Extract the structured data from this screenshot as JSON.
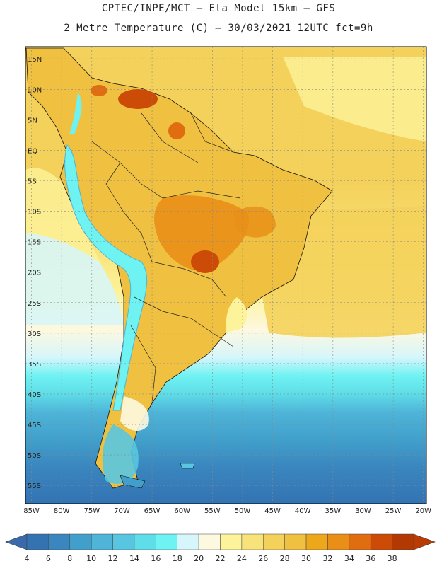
{
  "header": {
    "line1": "CPTEC/INPE/MCT –  Eta Model 15km – GFS",
    "line2": "2 Metre Temperature (C) – 30/03/2021 12UTC fct=9h"
  },
  "map": {
    "region": "South America",
    "lat_labels": [
      "15N",
      "10N",
      "5N",
      "EQ",
      "5S",
      "10S",
      "15S",
      "20S",
      "25S",
      "30S",
      "35S",
      "40S",
      "45S",
      "50S",
      "55S"
    ],
    "lat_values": [
      15,
      10,
      5,
      0,
      -5,
      -10,
      -15,
      -20,
      -25,
      -30,
      -35,
      -40,
      -45,
      -50,
      -55
    ],
    "lon_labels": [
      "85W",
      "80W",
      "75W",
      "70W",
      "65W",
      "60W",
      "55W",
      "50W",
      "45W",
      "40W",
      "35W",
      "30W",
      "25W",
      "20W"
    ],
    "lon_values": [
      -85,
      -80,
      -75,
      -70,
      -65,
      -60,
      -55,
      -50,
      -45,
      -40,
      -35,
      -30,
      -25,
      -20
    ],
    "lon_range": [
      -86,
      -19.5
    ],
    "lat_range": [
      -58,
      17
    ]
  },
  "colorbar": {
    "labels": [
      "4",
      "6",
      "8",
      "10",
      "12",
      "14",
      "16",
      "18",
      "20",
      "22",
      "24",
      "26",
      "28",
      "30",
      "32",
      "34",
      "36",
      "38"
    ],
    "colors": [
      "#3373b2",
      "#3a86bf",
      "#41a0cb",
      "#4fb4d8",
      "#58c6e0",
      "#5fdde8",
      "#6ff2f2",
      "#d6f6fb",
      "#fdf8e0",
      "#fdf39a",
      "#f8e27a",
      "#f4d15a",
      "#f0c040",
      "#eda71a",
      "#e98f18",
      "#e06d10",
      "#cc4b06",
      "#b23a02"
    ],
    "low_color": "#3a6aac",
    "high_color": "#ba3c04"
  }
}
